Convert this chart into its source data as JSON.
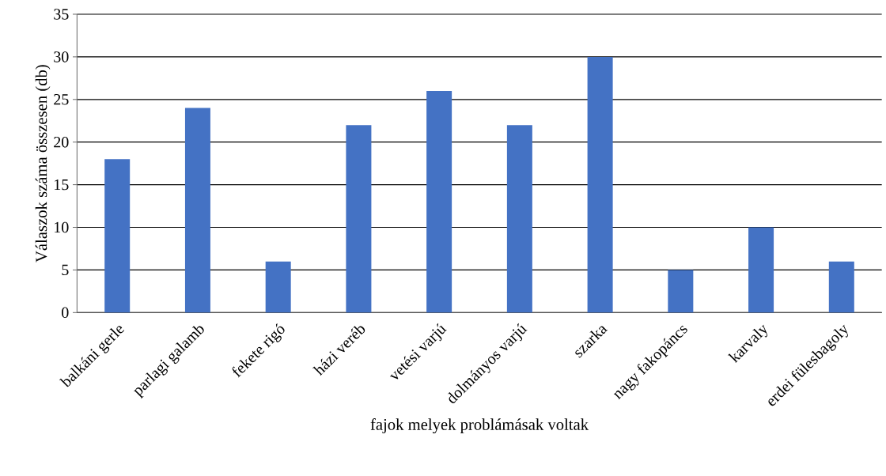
{
  "chart_data": {
    "type": "bar",
    "xlabel": "fajok  melyek problámásak voltak",
    "ylabel": "Válaszok száma összesen (db)",
    "categories": [
      "balkáni gerle",
      "parlagi galamb",
      "fekete rigó",
      "házi veréb",
      "vetési varjú",
      "dolmányos varjú",
      "szarka",
      "nagy fakopáncs",
      "karvaly",
      "erdei fülesbagoly"
    ],
    "values": [
      18,
      24,
      6,
      22,
      26,
      22,
      30,
      5,
      10,
      6
    ],
    "color": "#4472c4",
    "ylim": [
      0,
      35
    ],
    "yticks": [
      0,
      5,
      10,
      15,
      20,
      25,
      30,
      35
    ],
    "grid": "y"
  }
}
